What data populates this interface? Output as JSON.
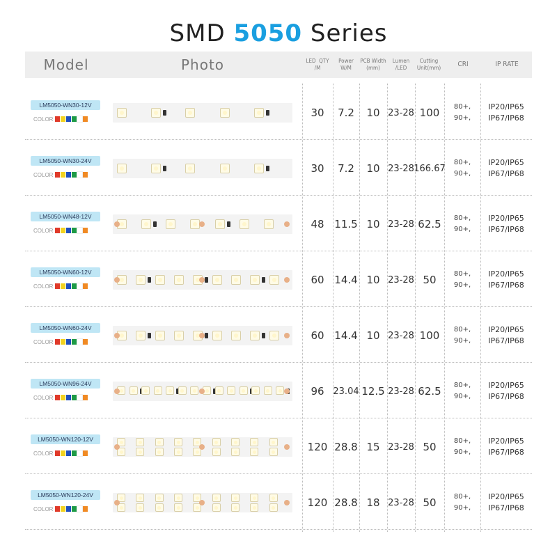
{
  "title": {
    "prefix": "SMD",
    "accent": "5050",
    "suffix": "Series"
  },
  "header": {
    "model": "Model",
    "photo": "Photo",
    "led_qty": "LED  QTY\n/M",
    "power": "Power\nW/M",
    "pcb_width": "PCB Width\n(mm)",
    "lumen": "Lumen\n/LED",
    "cutting": "Cutting\nUnit(mm)",
    "cri": "CRI",
    "ip": "IP RATE"
  },
  "color_label": "COLOR",
  "swatch_colors": [
    "#e03a2a",
    "#f3d21f",
    "#1f4fc0",
    "#1d9a46",
    "#ffffff",
    "#f08a24"
  ],
  "rows": [
    {
      "model": "LM5050-WN30-12V",
      "qty": "30",
      "power": "7.2",
      "pcb": "10",
      "lumen": "23-28",
      "cut": "100",
      "cri1": "80+,",
      "cri2": "90+,",
      "ip1": "IP20/IP65",
      "ip2": "IP67/IP68",
      "leds": 5
    },
    {
      "model": "LM5050-WN30-24V",
      "qty": "30",
      "power": "7.2",
      "pcb": "10",
      "lumen": "23-28",
      "cut": "166.67",
      "cri1": "80+,",
      "cri2": "90+,",
      "ip1": "IP20/IP65",
      "ip2": "IP67/IP68",
      "leds": 5
    },
    {
      "model": "LM5050-WN48-12V",
      "qty": "48",
      "power": "11.5",
      "pcb": "10",
      "lumen": "23-28",
      "cut": "62.5",
      "cri1": "80+,",
      "cri2": "90+,",
      "ip1": "IP20/IP65",
      "ip2": "IP67/IP68",
      "leds": 7
    },
    {
      "model": "LM5050-WN60-12V",
      "qty": "60",
      "power": "14.4",
      "pcb": "10",
      "lumen": "23-28",
      "cut": "50",
      "cri1": "80+,",
      "cri2": "90+,",
      "ip1": "IP20/IP65",
      "ip2": "IP67/IP68",
      "leds": 9
    },
    {
      "model": "LM5050-WN60-24V",
      "qty": "60",
      "power": "14.4",
      "pcb": "10",
      "lumen": "23-28",
      "cut": "100",
      "cri1": "80+,",
      "cri2": "90+,",
      "ip1": "IP20/IP65",
      "ip2": "IP67/IP68",
      "leds": 9
    },
    {
      "model": "LM5050-WN96-24V",
      "qty": "96",
      "power": "23.04",
      "pcb": "12.5",
      "lumen": "23-28",
      "cut": "62.5",
      "cri1": "80+,",
      "cri2": "90+,",
      "ip1": "IP20/IP65",
      "ip2": "IP67/IP68",
      "leds": 14
    },
    {
      "model": "LM5050-WN120-12V",
      "qty": "120",
      "power": "28.8",
      "pcb": "15",
      "lumen": "23-28",
      "cut": "50",
      "cri1": "80+,",
      "cri2": "90+,",
      "ip1": "IP20/IP65",
      "ip2": "IP67/IP68",
      "leds": 18
    },
    {
      "model": "LM5050-WN120-24V",
      "qty": "120",
      "power": "28.8",
      "pcb": "18",
      "lumen": "23-28",
      "cut": "50",
      "cri1": "80+,",
      "cri2": "90+,",
      "ip1": "IP20/IP65",
      "ip2": "IP67/IP68",
      "leds": 18
    }
  ]
}
